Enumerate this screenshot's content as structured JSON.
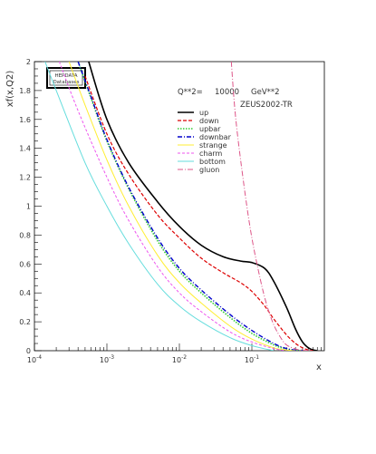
{
  "chart_data": {
    "type": "line",
    "xlabel": "x",
    "ylabel": "xf(x,Q2)",
    "xscale": "log",
    "xlim": [
      0.0001,
      1
    ],
    "ylim": [
      0,
      2
    ],
    "grid": false,
    "legend_position": "top-right",
    "info": {
      "q2_label": "Q**2=",
      "q2_value": "10000",
      "q2_unit": "GeV**2",
      "set": "ZEUS2002-TR"
    },
    "logo": {
      "line1": "HEPDATA",
      "line2": "Databases"
    },
    "x_ticks": [
      {
        "value": 0.0001,
        "base": "10",
        "exp": "-4"
      },
      {
        "value": 0.001,
        "base": "10",
        "exp": "-3"
      },
      {
        "value": 0.01,
        "base": "10",
        "exp": "-2"
      },
      {
        "value": 0.1,
        "base": "10",
        "exp": "-1"
      }
    ],
    "y_ticks": [
      {
        "value": 0,
        "label": "0"
      },
      {
        "value": 0.2,
        "label": "0.2"
      },
      {
        "value": 0.4,
        "label": "0.4"
      },
      {
        "value": 0.6,
        "label": "0.6"
      },
      {
        "value": 0.8,
        "label": "0.8"
      },
      {
        "value": 1.0,
        "label": "1"
      },
      {
        "value": 1.2,
        "label": "1.2"
      },
      {
        "value": 1.4,
        "label": "1.4"
      },
      {
        "value": 1.6,
        "label": "1.6"
      },
      {
        "value": 1.8,
        "label": "1.8"
      },
      {
        "value": 2.0,
        "label": "2"
      }
    ],
    "series": [
      {
        "name": "up",
        "color": "#000000",
        "dash": "",
        "width": 1.6,
        "x": [
          0.00056,
          0.001,
          0.002,
          0.005,
          0.01,
          0.02,
          0.04,
          0.07,
          0.1,
          0.15,
          0.2,
          0.3,
          0.4,
          0.5,
          0.6,
          0.7,
          0.8
        ],
        "y": [
          2.0,
          1.6,
          1.3,
          1.03,
          0.86,
          0.73,
          0.65,
          0.62,
          0.61,
          0.57,
          0.48,
          0.3,
          0.15,
          0.06,
          0.02,
          0.005,
          0.0
        ]
      },
      {
        "name": "down",
        "color": "#dd0000",
        "dash": "4,2",
        "width": 1.2,
        "x": [
          0.0005,
          0.001,
          0.002,
          0.005,
          0.01,
          0.02,
          0.04,
          0.07,
          0.1,
          0.15,
          0.2,
          0.3,
          0.4,
          0.5,
          0.6,
          0.7
        ],
        "y": [
          1.9,
          1.5,
          1.22,
          0.94,
          0.78,
          0.64,
          0.54,
          0.47,
          0.41,
          0.31,
          0.22,
          0.11,
          0.05,
          0.02,
          0.005,
          0.0
        ]
      },
      {
        "name": "upbar",
        "color": "#33cc33",
        "dash": "1.5,1.5",
        "width": 1.6,
        "x": [
          0.0004,
          0.0006,
          0.001,
          0.002,
          0.005,
          0.01,
          0.02,
          0.05,
          0.1,
          0.2,
          0.3,
          0.4,
          0.5
        ],
        "y": [
          2.0,
          1.75,
          1.45,
          1.12,
          0.76,
          0.55,
          0.4,
          0.23,
          0.12,
          0.04,
          0.012,
          0.003,
          0.0
        ]
      },
      {
        "name": "downbar",
        "color": "#0000cc",
        "dash": "5,2,1,2",
        "width": 1.4,
        "x": [
          0.0004,
          0.0006,
          0.001,
          0.002,
          0.005,
          0.01,
          0.02,
          0.05,
          0.1,
          0.2,
          0.3,
          0.4,
          0.5
        ],
        "y": [
          2.0,
          1.76,
          1.46,
          1.13,
          0.78,
          0.57,
          0.42,
          0.25,
          0.14,
          0.05,
          0.015,
          0.004,
          0.0
        ]
      },
      {
        "name": "strange",
        "color": "#ffee33",
        "dash": "",
        "width": 1.0,
        "x": [
          0.0003,
          0.0005,
          0.001,
          0.002,
          0.005,
          0.01,
          0.02,
          0.05,
          0.1,
          0.2,
          0.3,
          0.4
        ],
        "y": [
          2.0,
          1.7,
          1.32,
          1.0,
          0.66,
          0.47,
          0.33,
          0.17,
          0.08,
          0.02,
          0.005,
          0.0
        ]
      },
      {
        "name": "charm",
        "color": "#ee55ee",
        "dash": "3,2",
        "width": 1.0,
        "x": [
          0.00022,
          0.0004,
          0.001,
          0.002,
          0.005,
          0.01,
          0.02,
          0.05,
          0.1,
          0.2,
          0.3
        ],
        "y": [
          2.0,
          1.66,
          1.2,
          0.9,
          0.58,
          0.4,
          0.27,
          0.13,
          0.06,
          0.015,
          0.0
        ]
      },
      {
        "name": "bottom",
        "color": "#66dddd",
        "dash": "",
        "width": 1.0,
        "x": [
          0.00014,
          0.0002,
          0.0005,
          0.001,
          0.002,
          0.005,
          0.01,
          0.02,
          0.05,
          0.1,
          0.2
        ],
        "y": [
          2.0,
          1.8,
          1.3,
          1.0,
          0.74,
          0.46,
          0.31,
          0.2,
          0.09,
          0.035,
          0.0
        ]
      },
      {
        "name": "gluon",
        "color": "#dd5588",
        "dash": "6,2,1,2",
        "width": 1.0,
        "x": [
          0.052,
          0.06,
          0.08,
          0.1,
          0.13,
          0.16,
          0.2,
          0.25,
          0.3,
          0.4,
          0.5,
          0.7
        ],
        "y": [
          2.0,
          1.6,
          1.1,
          0.78,
          0.5,
          0.32,
          0.18,
          0.09,
          0.04,
          0.012,
          0.003,
          0.0
        ]
      }
    ]
  }
}
